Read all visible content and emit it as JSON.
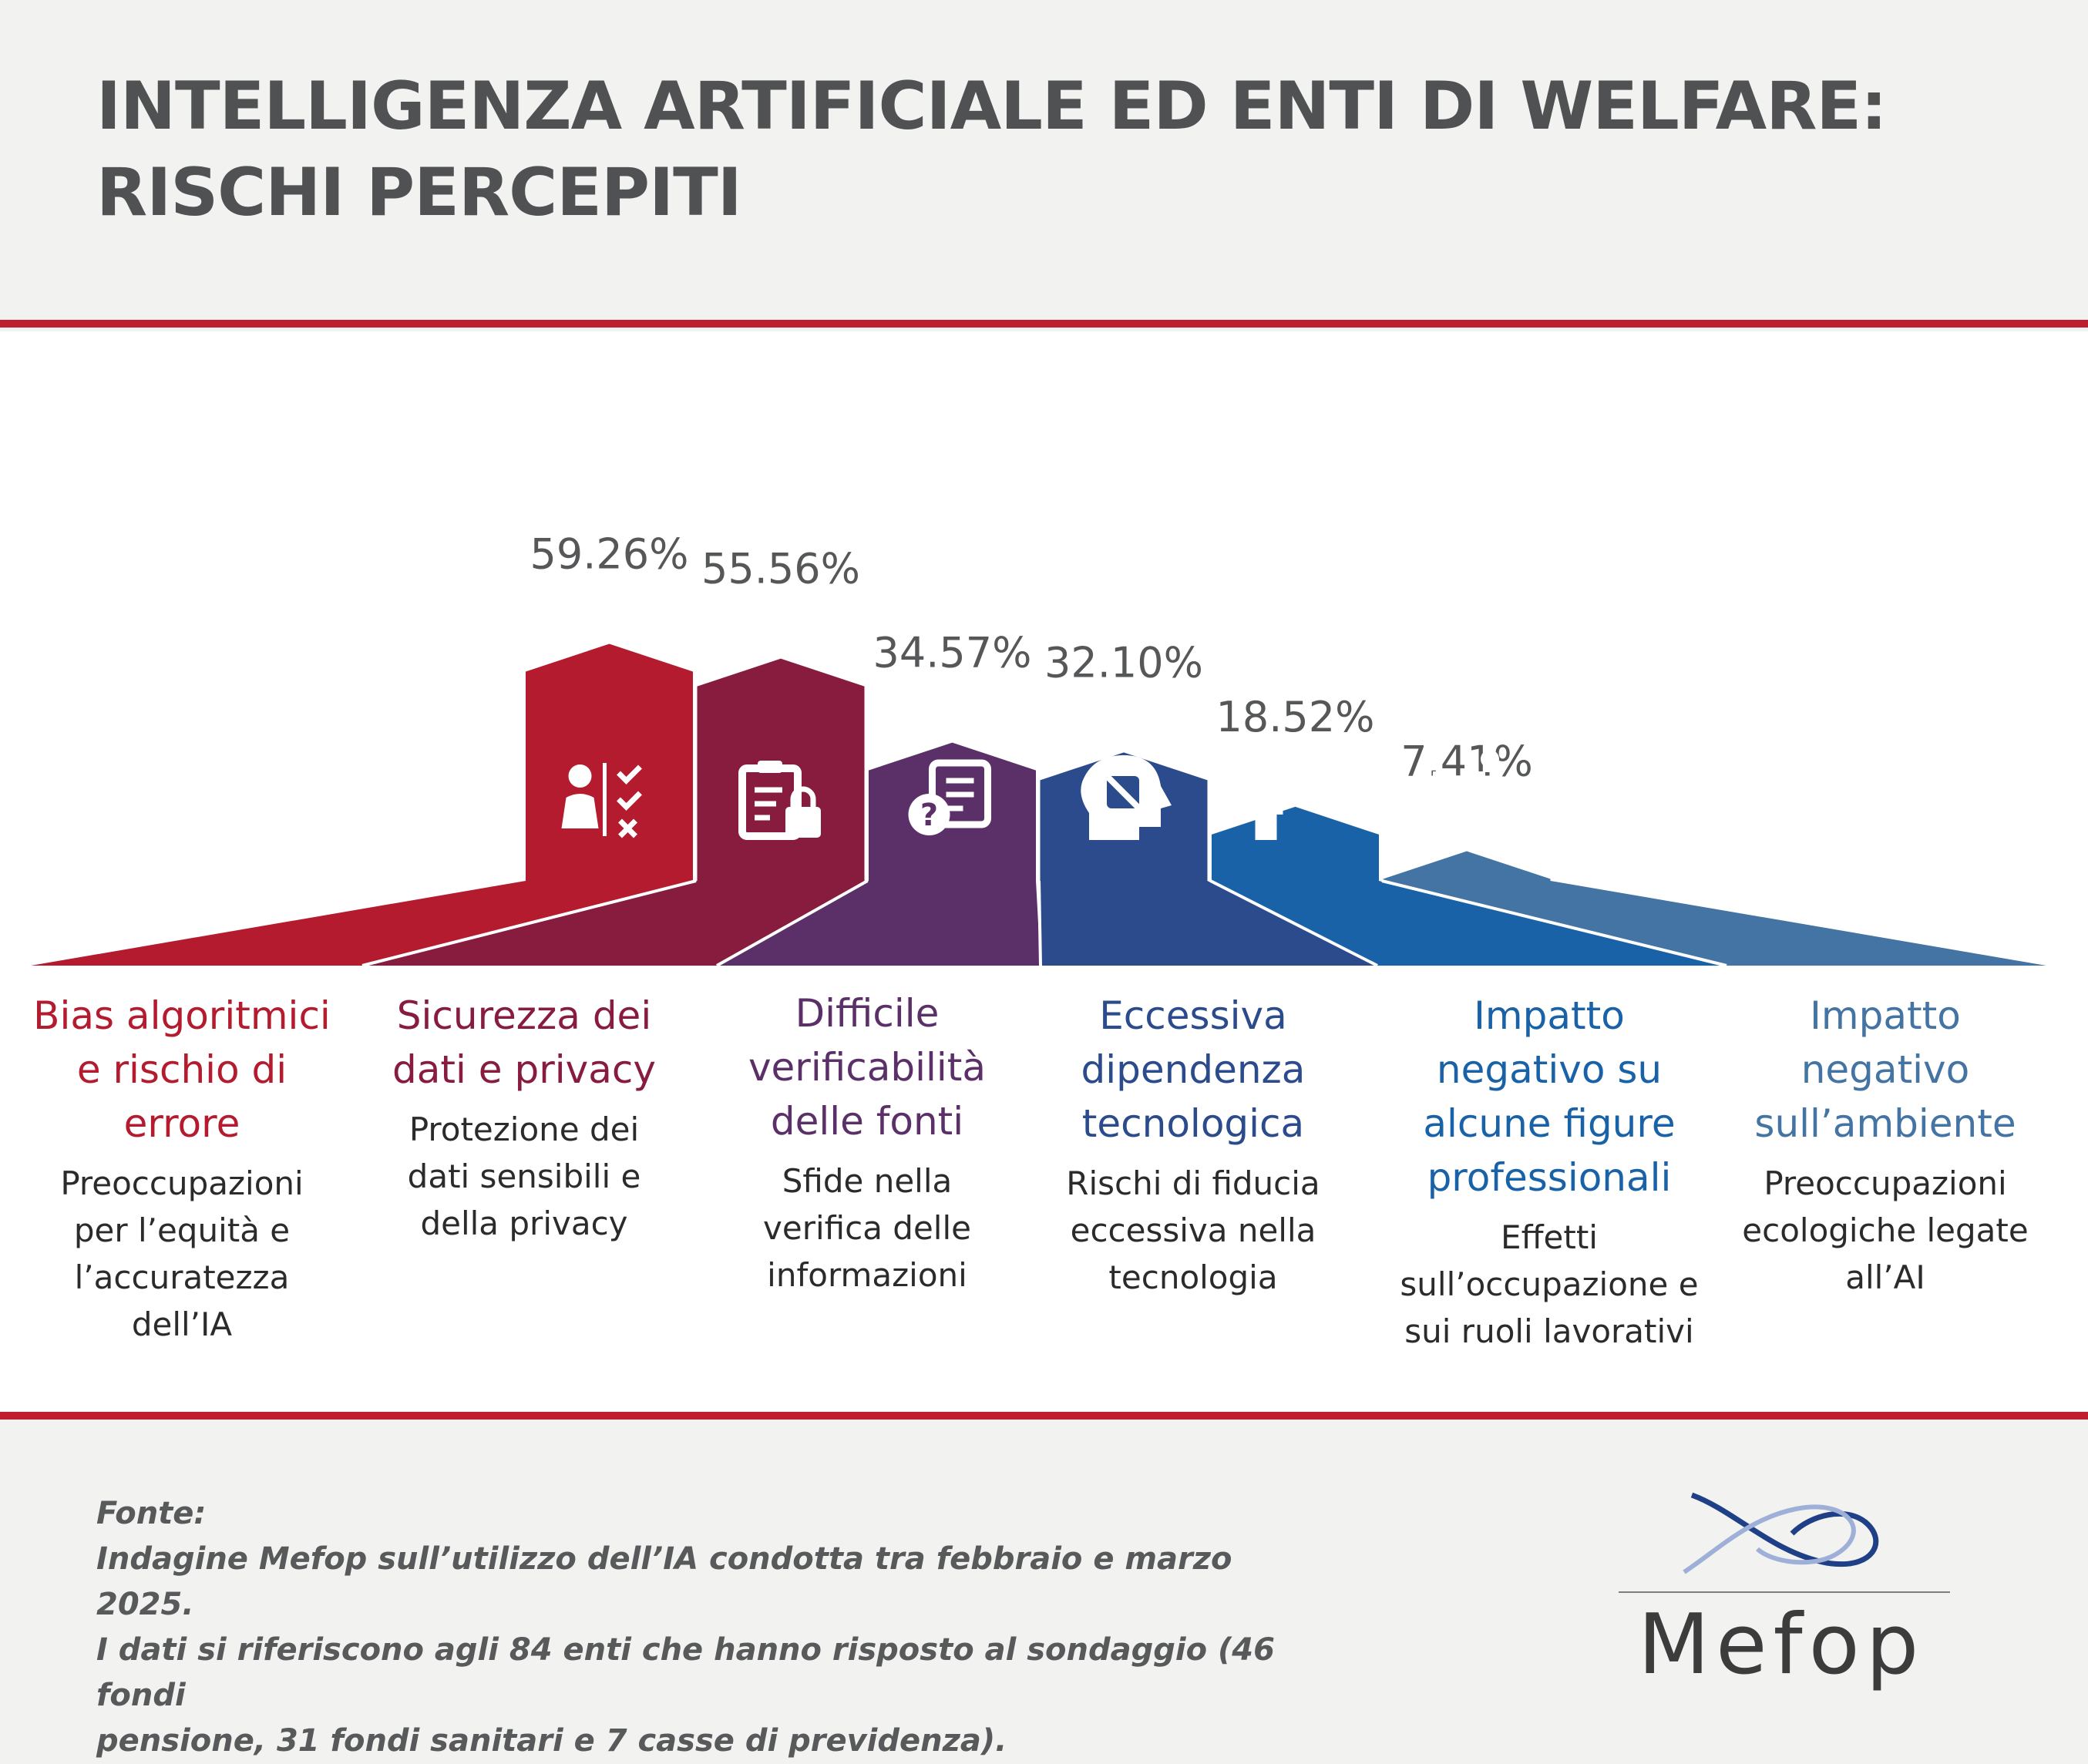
{
  "title": "INTELLIGENZA ARTIFICIALE ED ENTI DI WELFARE: RISCHI PERCEPITI",
  "colors": {
    "rule": "#bf1e2e",
    "series": [
      "#b51b2e",
      "#871c3e",
      "#5b3069",
      "#2b4b8c",
      "#1a62a8",
      "#4474a3"
    ]
  },
  "chart_data": {
    "type": "bar",
    "categories": [
      "Bias algoritmici e rischio di errore",
      "Sicurezza dei dati e privacy",
      "Difficile verificabilità delle fonti",
      "Eccessiva dipendenza tecnologica",
      "Impatto negativo su alcune figure professionali",
      "Impatto negativo sull’ambiente"
    ],
    "values": [
      59.26,
      55.56,
      34.57,
      32.1,
      18.52,
      7.41
    ],
    "value_labels": [
      "59.26%",
      "55.56%",
      "34.57%",
      "32.10%",
      "18.52%",
      "7.41%"
    ],
    "unit": "%",
    "grid": false,
    "legend": "none"
  },
  "categories": [
    {
      "name_lines": [
        "Bias algoritmici",
        "e rischio di",
        "errore"
      ],
      "desc_lines": [
        "Preoccupazioni",
        "per l’equità e",
        "l’accuratezza",
        "dell’IA"
      ],
      "icon": "person-checklist-icon",
      "color": "#b51b2e"
    },
    {
      "name_lines": [
        "Sicurezza dei",
        "dati e privacy"
      ],
      "desc_lines": [
        "Protezione dei",
        "dati sensibili e",
        "della privacy"
      ],
      "icon": "clipboard-lock-icon",
      "color": "#871c3e"
    },
    {
      "name_lines": [
        "Difficile",
        "verificabilità",
        "delle fonti"
      ],
      "desc_lines": [
        "Sfide nella",
        "verifica delle",
        "informazioni"
      ],
      "icon": "document-question-icon",
      "color": "#5b3069"
    },
    {
      "name_lines": [
        "Eccessiva",
        "dipendenza",
        "tecnologica"
      ],
      "desc_lines": [
        "Rischi di fiducia",
        "eccessiva nella",
        "tecnologia"
      ],
      "icon": "head-chip-icon",
      "color": "#2b4b8c"
    },
    {
      "name_lines": [
        "Impatto",
        "negativo su",
        "alcune figure",
        "professionali"
      ],
      "desc_lines": [
        "Effetti",
        "sull’occupazione e",
        "sui ruoli lavorativi"
      ],
      "icon": "person-decline-icon",
      "color": "#1a62a8"
    },
    {
      "name_lines": [
        "Impatto",
        "negativo",
        "sull’ambiente"
      ],
      "desc_lines": [
        "Preoccupazioni",
        "ecologiche legate",
        "all’AI"
      ],
      "icon": "factory-smoke-icon",
      "color": "#4474a3"
    }
  ],
  "footer": {
    "label": "Fonte:",
    "lines": [
      "Indagine Mefop sull’utilizzo dell’IA condotta tra febbraio e marzo 2025.",
      "I dati si riferiscono agli 84 enti che hanno risposto al sondaggio (46 fondi",
      "pensione, 31 fondi sanitari e 7 casse di previdenza)."
    ]
  },
  "logo": {
    "name": "Mefop",
    "icon": "mefop-logo-icon"
  }
}
